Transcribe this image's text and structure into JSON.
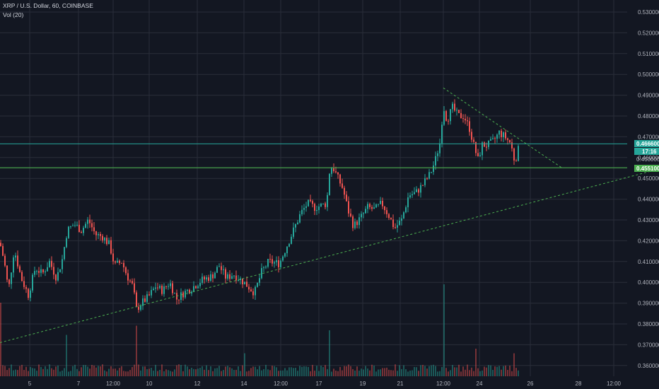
{
  "legend": {
    "symbol_line": "XRP / U.S. Dollar, 60, COINBASE",
    "volume_line": "Vol (20)"
  },
  "price_tags": {
    "current_price": "0.466600",
    "countdown": "17:16",
    "hidden_under": "0.460000",
    "horizontal_level": "0.455100"
  },
  "colors": {
    "background": "#131722",
    "grid": "#2a2e39",
    "up": "#26a69a",
    "down": "#ef5350",
    "trendline": "#4caf50",
    "level_line": "#4caf50",
    "current_line": "#26a69a",
    "axis_text": "#b2b5be"
  },
  "chart_data": {
    "type": "candlestick",
    "symbol": "XRP / U.S. Dollar",
    "interval": "60",
    "exchange": "COINBASE",
    "indicator": "Vol (20)",
    "y_axis": {
      "labels": [
        "0.530000",
        "0.520000",
        "0.510000",
        "0.500000",
        "0.490000",
        "0.480000",
        "0.470000",
        "0.460000",
        "0.450000",
        "0.440000",
        "0.430000",
        "0.420000",
        "0.410000",
        "0.400000",
        "0.390000",
        "0.380000",
        "0.370000",
        "0.360000"
      ],
      "ylim": [
        0.355,
        0.533
      ]
    },
    "x_axis": {
      "labels": [
        "5",
        "7",
        "12:00",
        "10",
        "12",
        "14",
        "12:00",
        "17",
        "19",
        "21",
        "12:00",
        "24",
        "26",
        "28",
        "12:00"
      ]
    },
    "current_price": 0.4666,
    "horizontal_level": 0.4551,
    "support_trendline": {
      "from": 0.371,
      "to": 0.4545
    },
    "resistance_trendline": {
      "from": 0.4935,
      "to": 0.455
    },
    "price_path": [
      [
        0,
        0.419
      ],
      [
        6,
        0.41
      ],
      [
        12,
        0.396
      ],
      [
        20,
        0.416
      ],
      [
        30,
        0.402
      ],
      [
        40,
        0.394
      ],
      [
        50,
        0.407
      ],
      [
        60,
        0.404
      ],
      [
        70,
        0.41
      ],
      [
        80,
        0.402
      ],
      [
        88,
        0.411
      ],
      [
        95,
        0.425
      ],
      [
        105,
        0.428
      ],
      [
        115,
        0.425
      ],
      [
        125,
        0.43
      ],
      [
        135,
        0.423
      ],
      [
        145,
        0.422
      ],
      [
        155,
        0.418
      ],
      [
        162,
        0.408
      ],
      [
        172,
        0.41
      ],
      [
        180,
        0.403
      ],
      [
        188,
        0.398
      ],
      [
        193,
        0.387
      ],
      [
        200,
        0.39
      ],
      [
        210,
        0.393
      ],
      [
        220,
        0.398
      ],
      [
        230,
        0.396
      ],
      [
        240,
        0.4
      ],
      [
        250,
        0.392
      ],
      [
        260,
        0.395
      ],
      [
        270,
        0.397
      ],
      [
        285,
        0.401
      ],
      [
        300,
        0.403
      ],
      [
        310,
        0.408
      ],
      [
        320,
        0.402
      ],
      [
        330,
        0.404
      ],
      [
        345,
        0.4
      ],
      [
        360,
        0.395
      ],
      [
        370,
        0.405
      ],
      [
        380,
        0.41
      ],
      [
        395,
        0.409
      ],
      [
        405,
        0.417
      ],
      [
        415,
        0.425
      ],
      [
        425,
        0.433
      ],
      [
        435,
        0.438
      ],
      [
        445,
        0.436
      ],
      [
        455,
        0.437
      ],
      [
        462,
        0.438
      ],
      [
        466,
        0.453
      ],
      [
        470,
        0.456
      ],
      [
        478,
        0.45
      ],
      [
        485,
        0.445
      ],
      [
        492,
        0.435
      ],
      [
        500,
        0.427
      ],
      [
        510,
        0.431
      ],
      [
        520,
        0.436
      ],
      [
        530,
        0.435
      ],
      [
        540,
        0.438
      ],
      [
        550,
        0.432
      ],
      [
        558,
        0.426
      ],
      [
        568,
        0.43
      ],
      [
        578,
        0.442
      ],
      [
        588,
        0.443
      ],
      [
        598,
        0.447
      ],
      [
        608,
        0.452
      ],
      [
        615,
        0.458
      ],
      [
        622,
        0.467
      ],
      [
        627,
        0.485
      ],
      [
        632,
        0.478
      ],
      [
        640,
        0.484
      ],
      [
        648,
        0.48
      ],
      [
        656,
        0.48
      ],
      [
        664,
        0.474
      ],
      [
        670,
        0.466
      ],
      [
        676,
        0.459
      ],
      [
        682,
        0.466
      ],
      [
        690,
        0.466
      ],
      [
        698,
        0.468
      ],
      [
        706,
        0.472
      ],
      [
        714,
        0.47
      ],
      [
        722,
        0.467
      ],
      [
        728,
        0.458
      ],
      [
        735,
        0.466
      ]
    ],
    "volume_spikes": [
      [
        2,
        0.8
      ],
      [
        95,
        0.45
      ],
      [
        193,
        0.55
      ],
      [
        345,
        0.25
      ],
      [
        466,
        0.5
      ],
      [
        627,
        1.0
      ],
      [
        672,
        0.3
      ],
      [
        728,
        0.25
      ]
    ]
  }
}
